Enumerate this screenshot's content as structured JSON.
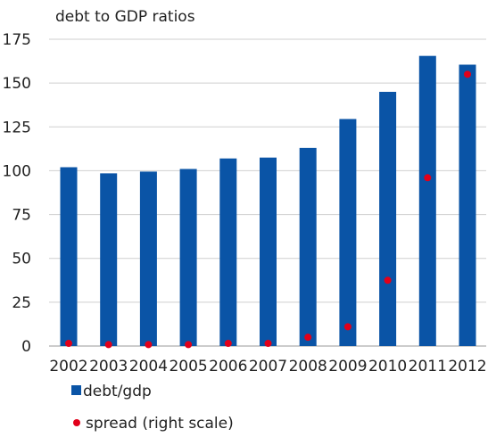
{
  "chart_data": {
    "type": "bar",
    "title": "debt to GDP ratios",
    "categories": [
      "2002",
      "2003",
      "2004",
      "2005",
      "2006",
      "2007",
      "2008",
      "2009",
      "2010",
      "2011",
      "2012"
    ],
    "ylim": [
      0,
      175
    ],
    "yticks": [
      0,
      25,
      50,
      75,
      100,
      125,
      150,
      175
    ],
    "grid": true,
    "legend_position": "bottom-left",
    "series": [
      {
        "name": "debt/gdp",
        "kind": "bar",
        "color": "#0a54a6",
        "values": [
          102,
          98.5,
          99.5,
          101,
          107,
          107.5,
          113,
          129.5,
          145,
          165.5,
          160.5
        ]
      },
      {
        "name": "spread (right scale)",
        "kind": "scatter",
        "color": "#e1001a",
        "values": [
          1.5,
          0.8,
          0.8,
          0.8,
          1.5,
          1.5,
          5,
          11,
          37.5,
          96,
          155
        ]
      }
    ]
  }
}
